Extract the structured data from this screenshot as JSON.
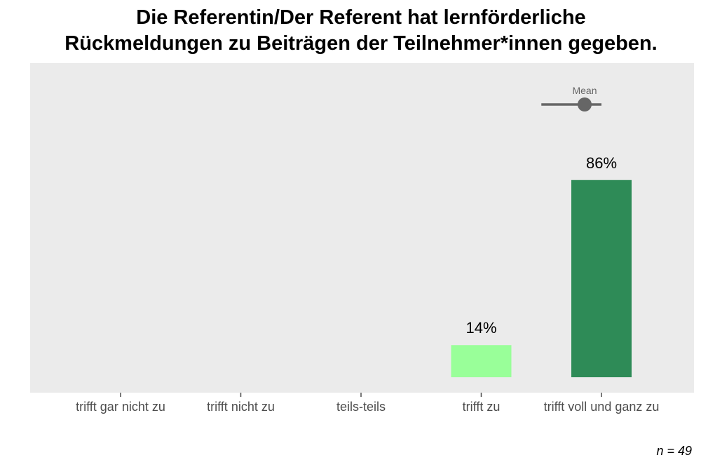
{
  "title_lines": [
    "Die Referentin/Der Referent hat lernförderliche",
    "Rückmeldungen zu Beiträgen der Teilnehmer*innen gegeben."
  ],
  "footnote": "n = 49",
  "colors": {
    "panel": "#ebebeb",
    "mean": "#666666",
    "tick": "#4d4d4d"
  },
  "chart_data": {
    "type": "bar",
    "categories": [
      "trifft gar nicht zu",
      "trifft nicht zu",
      "teils-teils",
      "trifft zu",
      "trifft voll und ganz zu"
    ],
    "values": [
      0,
      0,
      0,
      14,
      86
    ],
    "value_labels": [
      "",
      "",
      "",
      "14%",
      "86%"
    ],
    "bar_colors": [
      null,
      null,
      null,
      "#99ff99",
      "#2e8b57"
    ],
    "ylim": [
      0,
      100
    ],
    "grid": false,
    "mean": {
      "label": "Mean",
      "value": 4.86,
      "range": [
        4.5,
        5
      ]
    }
  }
}
